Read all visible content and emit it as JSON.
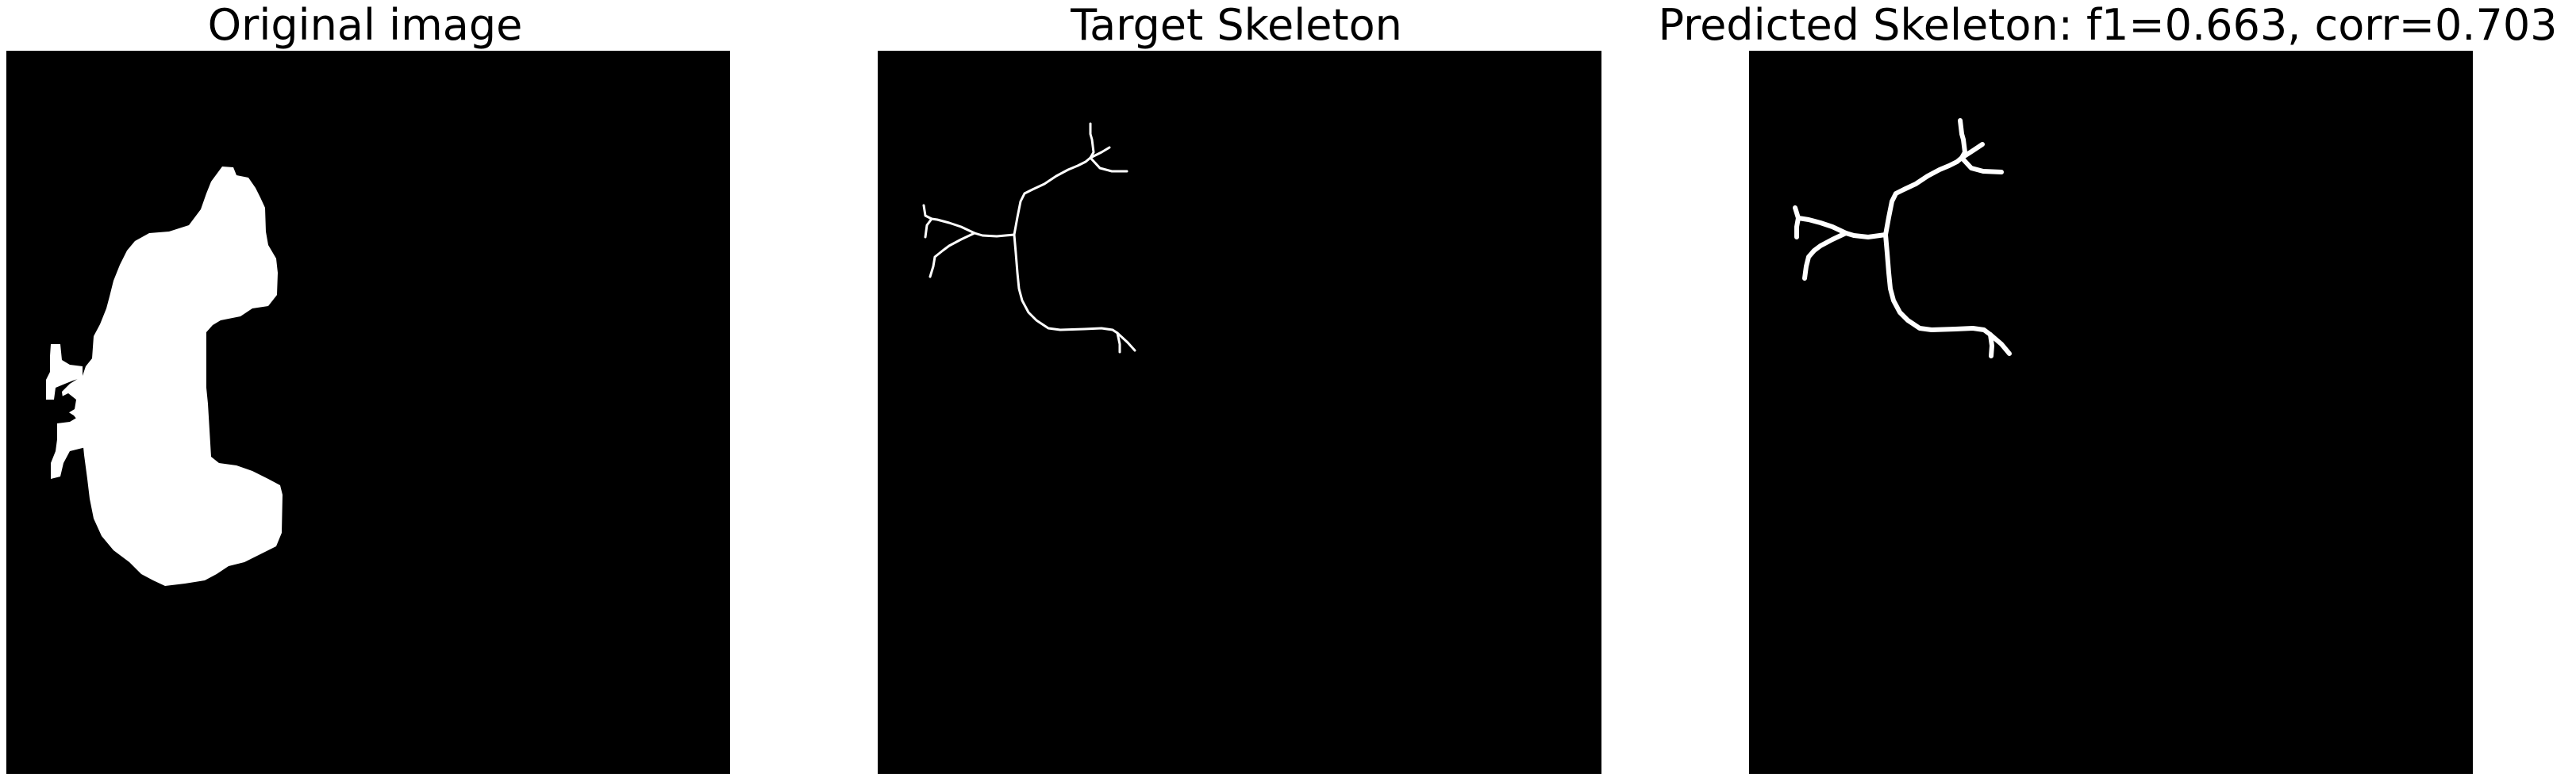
{
  "panels": [
    {
      "title": "Original image",
      "image": "binary-shape-mask"
    },
    {
      "title": "Target Skeleton",
      "image": "target-skeleton"
    },
    {
      "title": "Predicted Skeleton: f1=0.663, corr=0.703",
      "image": "predicted-skeleton"
    }
  ],
  "colors": {
    "background": "#000000",
    "foreground": "#ffffff",
    "page": "#ffffff"
  }
}
